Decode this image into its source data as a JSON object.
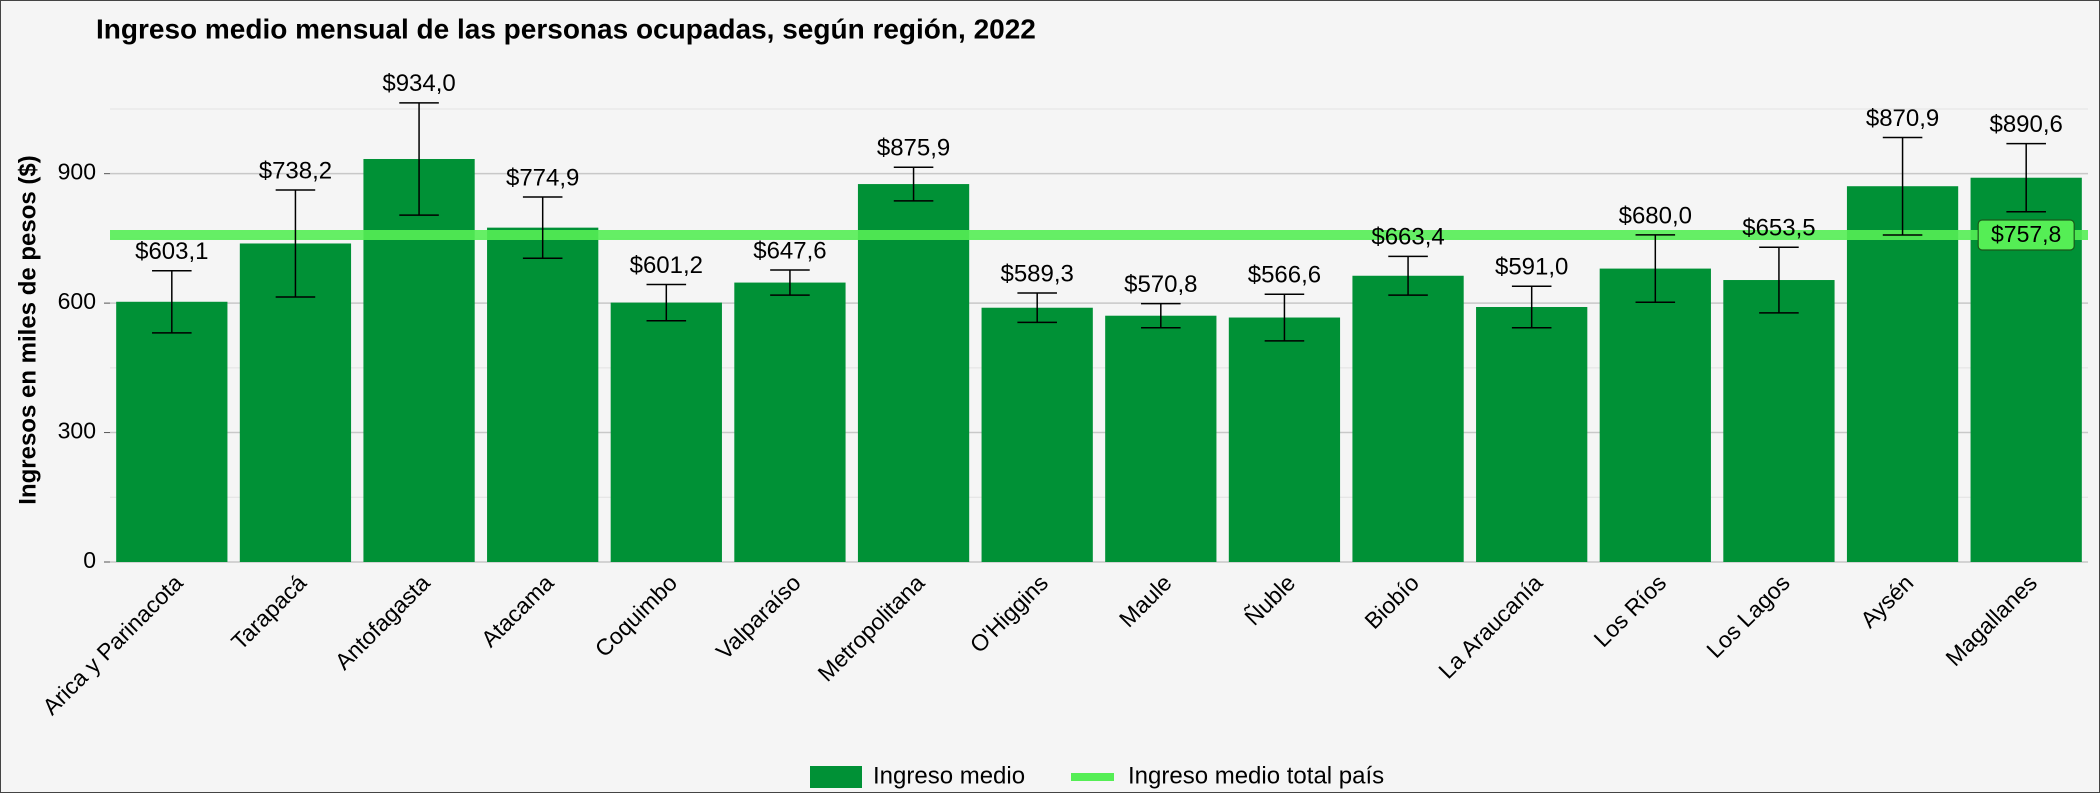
{
  "chart_data": {
    "type": "bar",
    "title": "Ingreso medio mensual de las personas ocupadas, según región, 2022",
    "y_label": "Ingresos en miles de pesos ($)",
    "categories": [
      "Arica y Parinacota",
      "Tarapacá",
      "Antofagasta",
      "Atacama",
      "Coquimbo",
      "Valparaíso",
      "Metropolitana",
      "O'Higgins",
      "Maule",
      "Ñuble",
      "Biobío",
      "La Araucanía",
      "Los Ríos",
      "Los Lagos",
      "Aysén",
      "Magallanes"
    ],
    "series": [
      {
        "name": "Ingreso medio",
        "color": "#009136",
        "values": [
          603.1,
          738.2,
          934.0,
          774.9,
          601.2,
          647.6,
          875.9,
          589.3,
          570.8,
          566.6,
          663.4,
          591.0,
          680.0,
          653.5,
          870.9,
          890.6
        ],
        "value_labels": [
          "$603,1",
          "$738,2",
          "$934,0",
          "$774,9",
          "$601,2",
          "$647,6",
          "$875,9",
          "$589,3",
          "$570,8",
          "$566,6",
          "$663,4",
          "$591,0",
          "$680,0",
          "$653,5",
          "$870,9",
          "$890,6"
        ],
        "errors": [
          72,
          124,
          130,
          71,
          42,
          29,
          39,
          34,
          28,
          54,
          45,
          48,
          78,
          76,
          113,
          79
        ]
      }
    ],
    "reference": {
      "name": "Ingreso medio total país",
      "value": 757.8,
      "label": "$757,8",
      "color": "#55ee55"
    },
    "ylim": [
      0,
      1080
    ],
    "yticks": [
      0,
      300,
      600,
      900
    ],
    "yminor": [
      150,
      450,
      750,
      1050
    ],
    "grid": true
  }
}
